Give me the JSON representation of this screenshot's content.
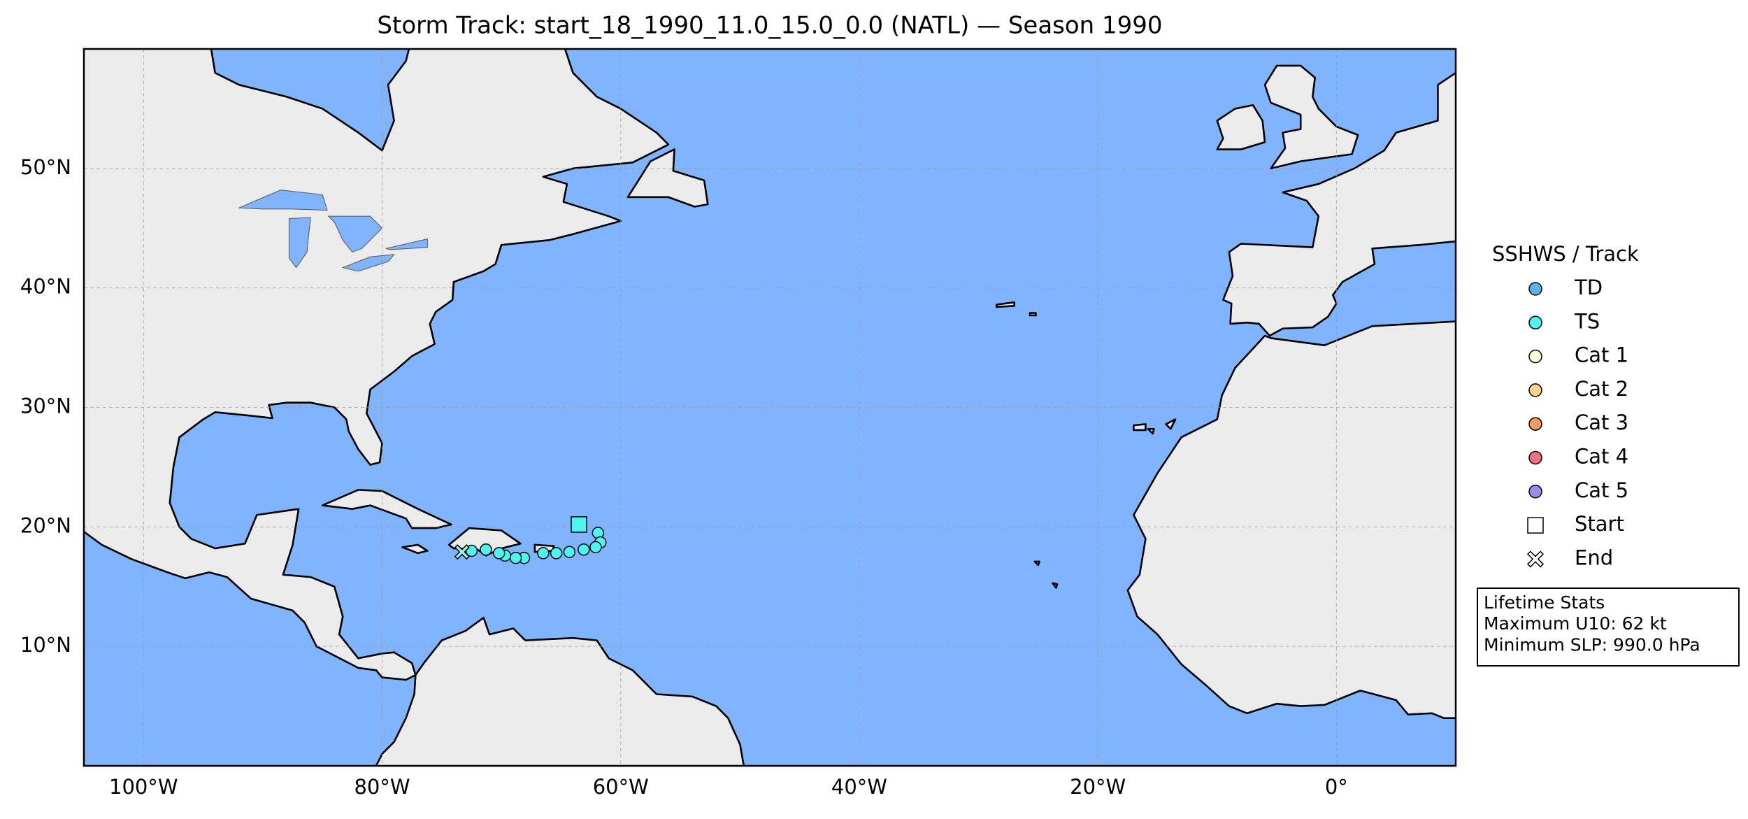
{
  "chart_data": {
    "type": "scatter",
    "title": "Storm Track: start_18_1990_11.0_15.0_0.0 (NATL) — Season 1990",
    "xlim": [
      -105,
      10
    ],
    "ylim": [
      0,
      60
    ],
    "xticks": [
      {
        "value": -100,
        "label": "100°W"
      },
      {
        "value": -80,
        "label": "80°W"
      },
      {
        "value": -60,
        "label": "60°W"
      },
      {
        "value": -40,
        "label": "40°W"
      },
      {
        "value": -20,
        "label": "20°W"
      },
      {
        "value": 0,
        "label": "0°"
      }
    ],
    "yticks": [
      {
        "value": 10,
        "label": "10°N"
      },
      {
        "value": 20,
        "label": "20°N"
      },
      {
        "value": 30,
        "label": "30°N"
      },
      {
        "value": 40,
        "label": "40°N"
      },
      {
        "value": 50,
        "label": "50°N"
      }
    ],
    "grid": true,
    "track": {
      "color": "#4ef5ee",
      "x": [
        -61.9,
        -61.7,
        -62.1,
        -63.1,
        -64.3,
        -65.4,
        -66.5,
        -68.1,
        -68.8,
        -69.7,
        -70.2,
        -71.3,
        -72.5
      ],
      "y": [
        19.5,
        18.7,
        18.3,
        18.1,
        17.9,
        17.8,
        17.8,
        17.4,
        17.4,
        17.6,
        17.8,
        18.1,
        18.0
      ]
    },
    "start": {
      "x": -63.5,
      "y": 20.2,
      "color": "#4ef5ee"
    },
    "end": {
      "x": -73.3,
      "y": 17.9,
      "color": "#9ef5e8"
    },
    "legend": {
      "title": "SSHWS / Track",
      "position": "right",
      "entries": [
        {
          "label": "TD",
          "color": "#5ab4e6",
          "marker": "circle"
        },
        {
          "label": "TS",
          "color": "#4ef5ee",
          "marker": "circle"
        },
        {
          "label": "Cat 1",
          "color": "#fbfbd6",
          "marker": "circle"
        },
        {
          "label": "Cat 2",
          "color": "#f6d58a",
          "marker": "circle"
        },
        {
          "label": "Cat 3",
          "color": "#f59a5a",
          "marker": "circle"
        },
        {
          "label": "Cat 4",
          "color": "#f26f80",
          "marker": "circle"
        },
        {
          "label": "Cat 5",
          "color": "#9c8ceb",
          "marker": "circle"
        },
        {
          "label": "Start",
          "color": "#ffffff",
          "marker": "square"
        },
        {
          "label": "End",
          "color": "#ffffff",
          "marker": "x"
        }
      ]
    },
    "stats": {
      "title": "Lifetime Stats",
      "lines": [
        "Maximum U10: 62 kt",
        "Minimum SLP: 990.0 hPa"
      ]
    }
  }
}
